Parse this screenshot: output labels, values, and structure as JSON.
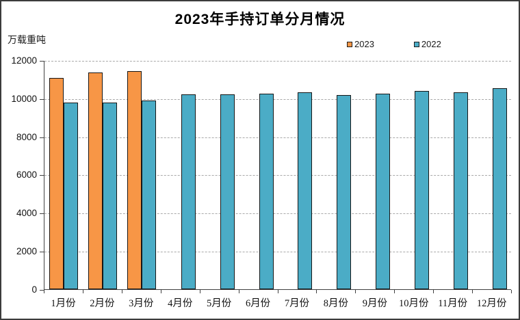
{
  "title": "2023年手持订单分月情况",
  "unit_label": "万载重吨",
  "legend": [
    {
      "label": "2023",
      "color": "#F79646"
    },
    {
      "label": "2022",
      "color": "#4BACC6"
    }
  ],
  "chart_data": {
    "type": "bar",
    "title": "2023年手持订单分月情况",
    "ylabel": "万载重吨",
    "xlabel": "",
    "categories": [
      "1月份",
      "2月份",
      "3月份",
      "4月份",
      "5月份",
      "6月份",
      "7月份",
      "8月份",
      "9月份",
      "10月份",
      "11月份",
      "12月份"
    ],
    "series": [
      {
        "name": "2023",
        "color": "#F79646",
        "values": [
          11114,
          11403,
          11452,
          null,
          null,
          null,
          null,
          null,
          null,
          null,
          null,
          null
        ]
      },
      {
        "name": "2022",
        "color": "#4BACC6",
        "values": [
          9832,
          9798,
          9934,
          10247,
          10249,
          10274,
          10366,
          10206,
          10265,
          10434,
          10358,
          10557
        ]
      }
    ],
    "ylim": [
      0,
      12000
    ],
    "ytick_step": 2000,
    "grid": true,
    "gridline_style": "dashed",
    "legend_position": "top-right",
    "bar_border_color": "#161616"
  }
}
